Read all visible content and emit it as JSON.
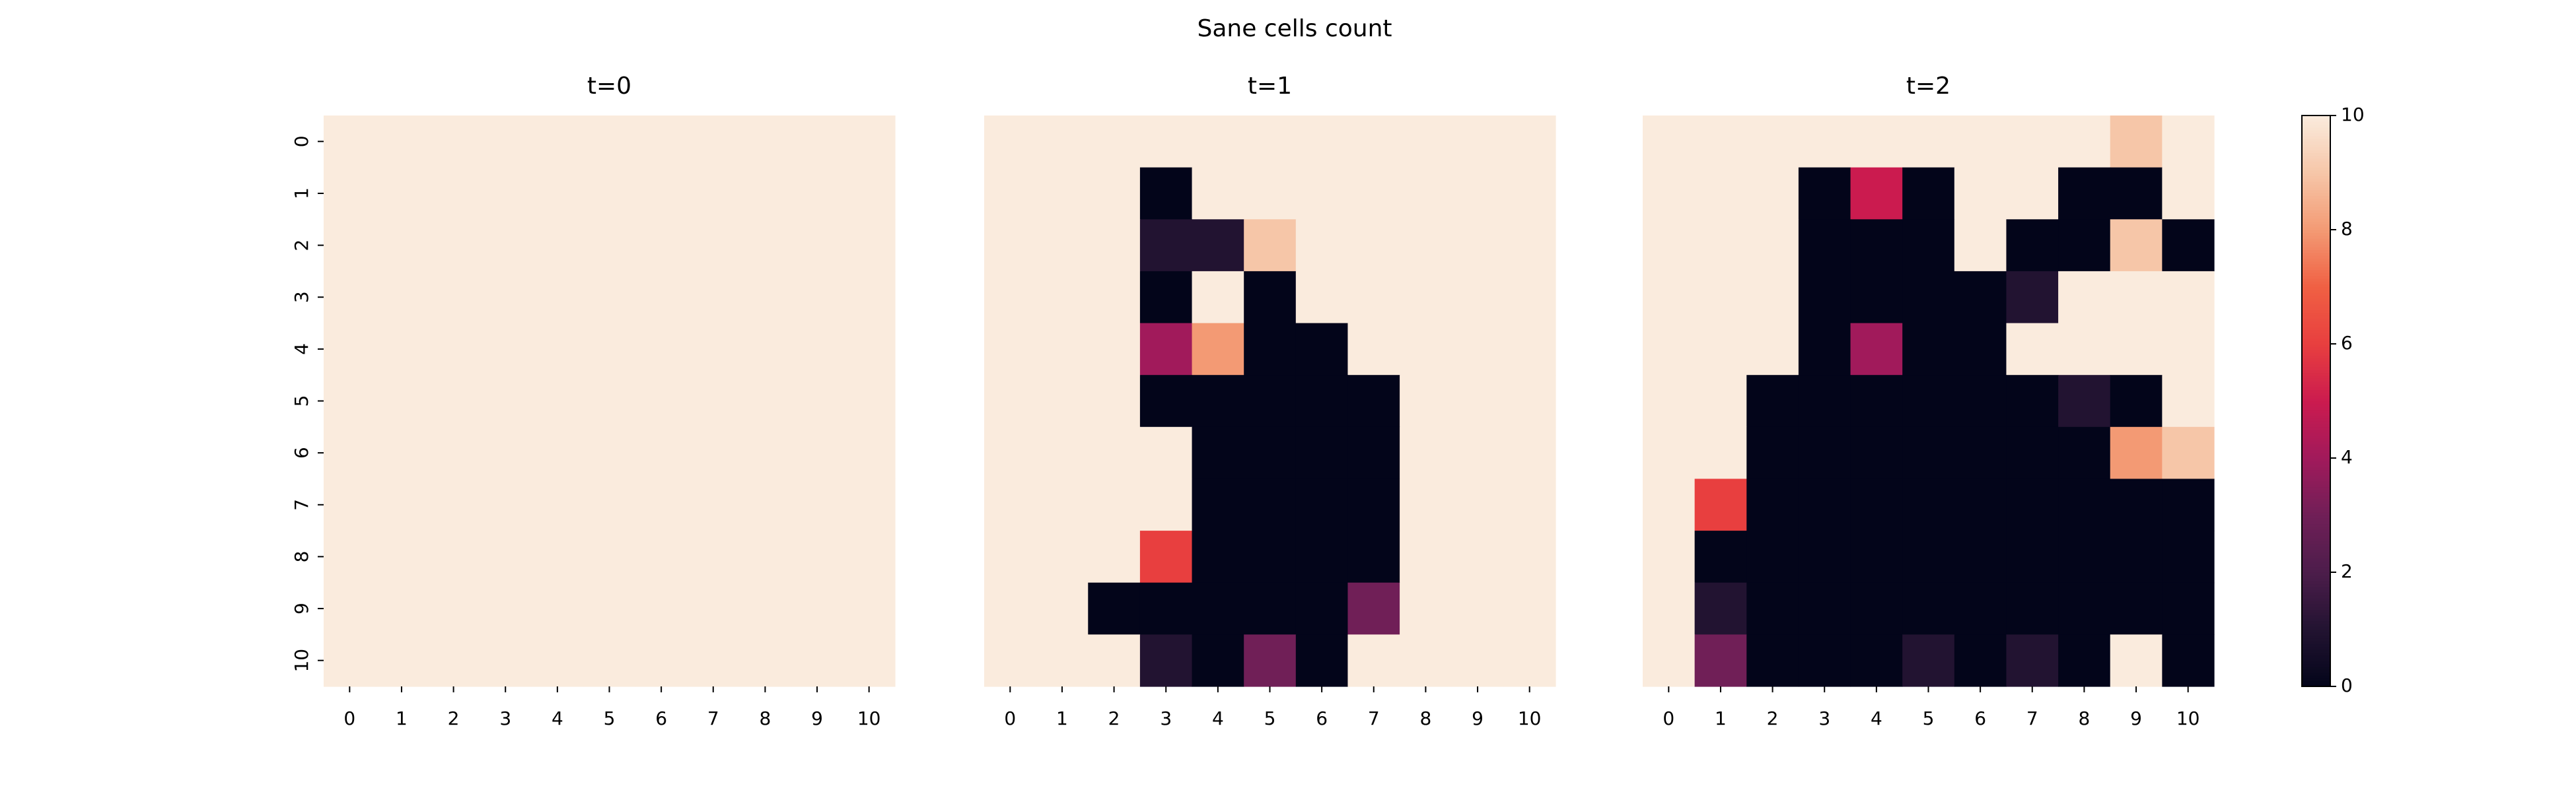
{
  "chart_data": {
    "type": "heatmap",
    "title": "Sane cells count",
    "cmap": "rocket",
    "x": [
      0,
      1,
      2,
      3,
      4,
      5,
      6,
      7,
      8,
      9,
      10
    ],
    "y": [
      0,
      1,
      2,
      3,
      4,
      5,
      6,
      7,
      8,
      9,
      10
    ],
    "vlim": [
      0,
      10
    ],
    "cticks": [
      0,
      2,
      4,
      6,
      8,
      10
    ],
    "panels": [
      {
        "title": "t=0",
        "values": [
          [
            10,
            10,
            10,
            10,
            10,
            10,
            10,
            10,
            10,
            10,
            10
          ],
          [
            10,
            10,
            10,
            10,
            10,
            10,
            10,
            10,
            10,
            10,
            10
          ],
          [
            10,
            10,
            10,
            10,
            10,
            10,
            10,
            10,
            10,
            10,
            10
          ],
          [
            10,
            10,
            10,
            10,
            10,
            10,
            10,
            10,
            10,
            10,
            10
          ],
          [
            10,
            10,
            10,
            10,
            10,
            10,
            10,
            10,
            10,
            10,
            10
          ],
          [
            10,
            10,
            10,
            10,
            10,
            10,
            10,
            10,
            10,
            10,
            10
          ],
          [
            10,
            10,
            10,
            10,
            10,
            10,
            10,
            10,
            10,
            10,
            10
          ],
          [
            10,
            10,
            10,
            10,
            10,
            10,
            10,
            10,
            10,
            10,
            10
          ],
          [
            10,
            10,
            10,
            10,
            10,
            10,
            10,
            10,
            10,
            10,
            10
          ],
          [
            10,
            10,
            10,
            10,
            10,
            10,
            10,
            10,
            10,
            10,
            10
          ],
          [
            10,
            10,
            10,
            10,
            10,
            10,
            10,
            10,
            10,
            10,
            10
          ]
        ]
      },
      {
        "title": "t=1",
        "values": [
          [
            10,
            10,
            10,
            10,
            10,
            10,
            10,
            10,
            10,
            10,
            10
          ],
          [
            10,
            10,
            10,
            0,
            10,
            10,
            10,
            10,
            10,
            10,
            10
          ],
          [
            10,
            10,
            10,
            1,
            1,
            9,
            10,
            10,
            10,
            10,
            10
          ],
          [
            10,
            10,
            10,
            0,
            10,
            0,
            10,
            10,
            10,
            10,
            10
          ],
          [
            10,
            10,
            10,
            4,
            8,
            0,
            0,
            10,
            10,
            10,
            10
          ],
          [
            10,
            10,
            10,
            0,
            0,
            0,
            0,
            0,
            10,
            10,
            10
          ],
          [
            10,
            10,
            10,
            10,
            0,
            0,
            0,
            0,
            10,
            10,
            10
          ],
          [
            10,
            10,
            10,
            10,
            0,
            0,
            0,
            0,
            10,
            10,
            10
          ],
          [
            10,
            10,
            10,
            6,
            0,
            0,
            0,
            0,
            10,
            10,
            10
          ],
          [
            10,
            10,
            0,
            0,
            0,
            0,
            0,
            3,
            10,
            10,
            10
          ],
          [
            10,
            10,
            10,
            1,
            0,
            3,
            0,
            10,
            10,
            10,
            10
          ]
        ]
      },
      {
        "title": "t=2",
        "values": [
          [
            10,
            10,
            10,
            10,
            10,
            10,
            10,
            10,
            10,
            9,
            10
          ],
          [
            10,
            10,
            10,
            0,
            5,
            0,
            10,
            10,
            0,
            0,
            10
          ],
          [
            10,
            10,
            10,
            0,
            0,
            0,
            10,
            0,
            0,
            9,
            0
          ],
          [
            10,
            10,
            10,
            0,
            0,
            0,
            0,
            1,
            10,
            10,
            10
          ],
          [
            10,
            10,
            10,
            0,
            4,
            0,
            0,
            10,
            10,
            10,
            10
          ],
          [
            10,
            10,
            0,
            0,
            0,
            0,
            0,
            0,
            1,
            0,
            10
          ],
          [
            10,
            10,
            0,
            0,
            0,
            0,
            0,
            0,
            0,
            8,
            9
          ],
          [
            10,
            6,
            0,
            0,
            0,
            0,
            0,
            0,
            0,
            0,
            0
          ],
          [
            10,
            0,
            0,
            0,
            0,
            0,
            0,
            0,
            0,
            0,
            0
          ],
          [
            10,
            1,
            0,
            0,
            0,
            0,
            0,
            0,
            0,
            0,
            0
          ],
          [
            10,
            3,
            0,
            0,
            0,
            1,
            0,
            1,
            0,
            10,
            0
          ]
        ]
      }
    ]
  }
}
